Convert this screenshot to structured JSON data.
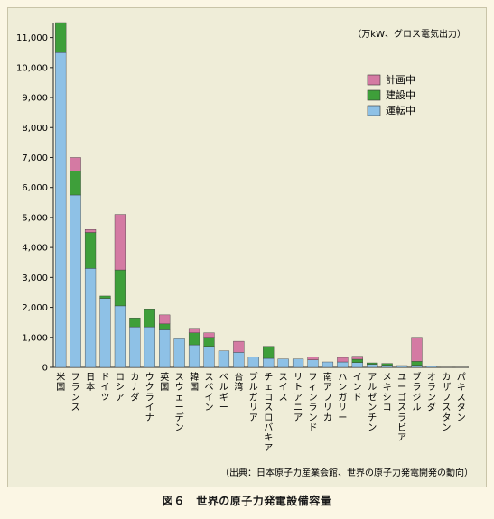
{
  "chart_data": {
    "type": "bar",
    "stacked": true,
    "unit_label": "（万kW、グロス電気出力）",
    "source": "（出典：日本原子力産業会館、世界の原子力発電開発の動向）",
    "ylim": [
      0,
      11500
    ],
    "yticks": [
      "0",
      "1,000",
      "2,000",
      "3,000",
      "4,000",
      "5,000",
      "6,000",
      "7,000",
      "8,000",
      "9,000",
      "10,000",
      "11,000"
    ],
    "categories": [
      "米国",
      "フランス",
      "日本",
      "ドイツ",
      "ロシア",
      "カナダ",
      "ウクライナ",
      "英国",
      "スウェーデン",
      "韓国",
      "スペイン",
      "ベルギー",
      "台湾",
      "ブルガリア",
      "チェコスロバキア",
      "スイス",
      "リトアニア",
      "フィンランド",
      "南アフリカ",
      "ハンガリー",
      "インド",
      "アルゼンチン",
      "メキシコ",
      "ユーゴスラビア",
      "ブラジル",
      "オランダ",
      "カザフスタン",
      "パキスタン"
    ],
    "series": [
      {
        "name": "運転中",
        "color": "#8ec1e6",
        "values": [
          10500,
          5750,
          3300,
          2300,
          2050,
          1350,
          1350,
          1250,
          950,
          750,
          700,
          550,
          500,
          350,
          300,
          280,
          280,
          250,
          180,
          180,
          160,
          100,
          70,
          60,
          70,
          50,
          10,
          10
        ]
      },
      {
        "name": "建設中",
        "color": "#3e9f3a",
        "values": [
          1000,
          800,
          1200,
          80,
          1200,
          300,
          600,
          200,
          0,
          400,
          300,
          0,
          0,
          0,
          400,
          0,
          0,
          0,
          0,
          0,
          110,
          50,
          60,
          0,
          130,
          0,
          0,
          0
        ]
      },
      {
        "name": "計画中",
        "color": "#d47aa3",
        "values": [
          0,
          450,
          100,
          0,
          1850,
          0,
          0,
          300,
          0,
          150,
          150,
          0,
          370,
          0,
          0,
          0,
          0,
          100,
          0,
          150,
          100,
          0,
          0,
          0,
          800,
          0,
          0,
          0
        ]
      }
    ],
    "legend_position": "top-right"
  },
  "caption": "図６　世界の原子力発電設備容量"
}
